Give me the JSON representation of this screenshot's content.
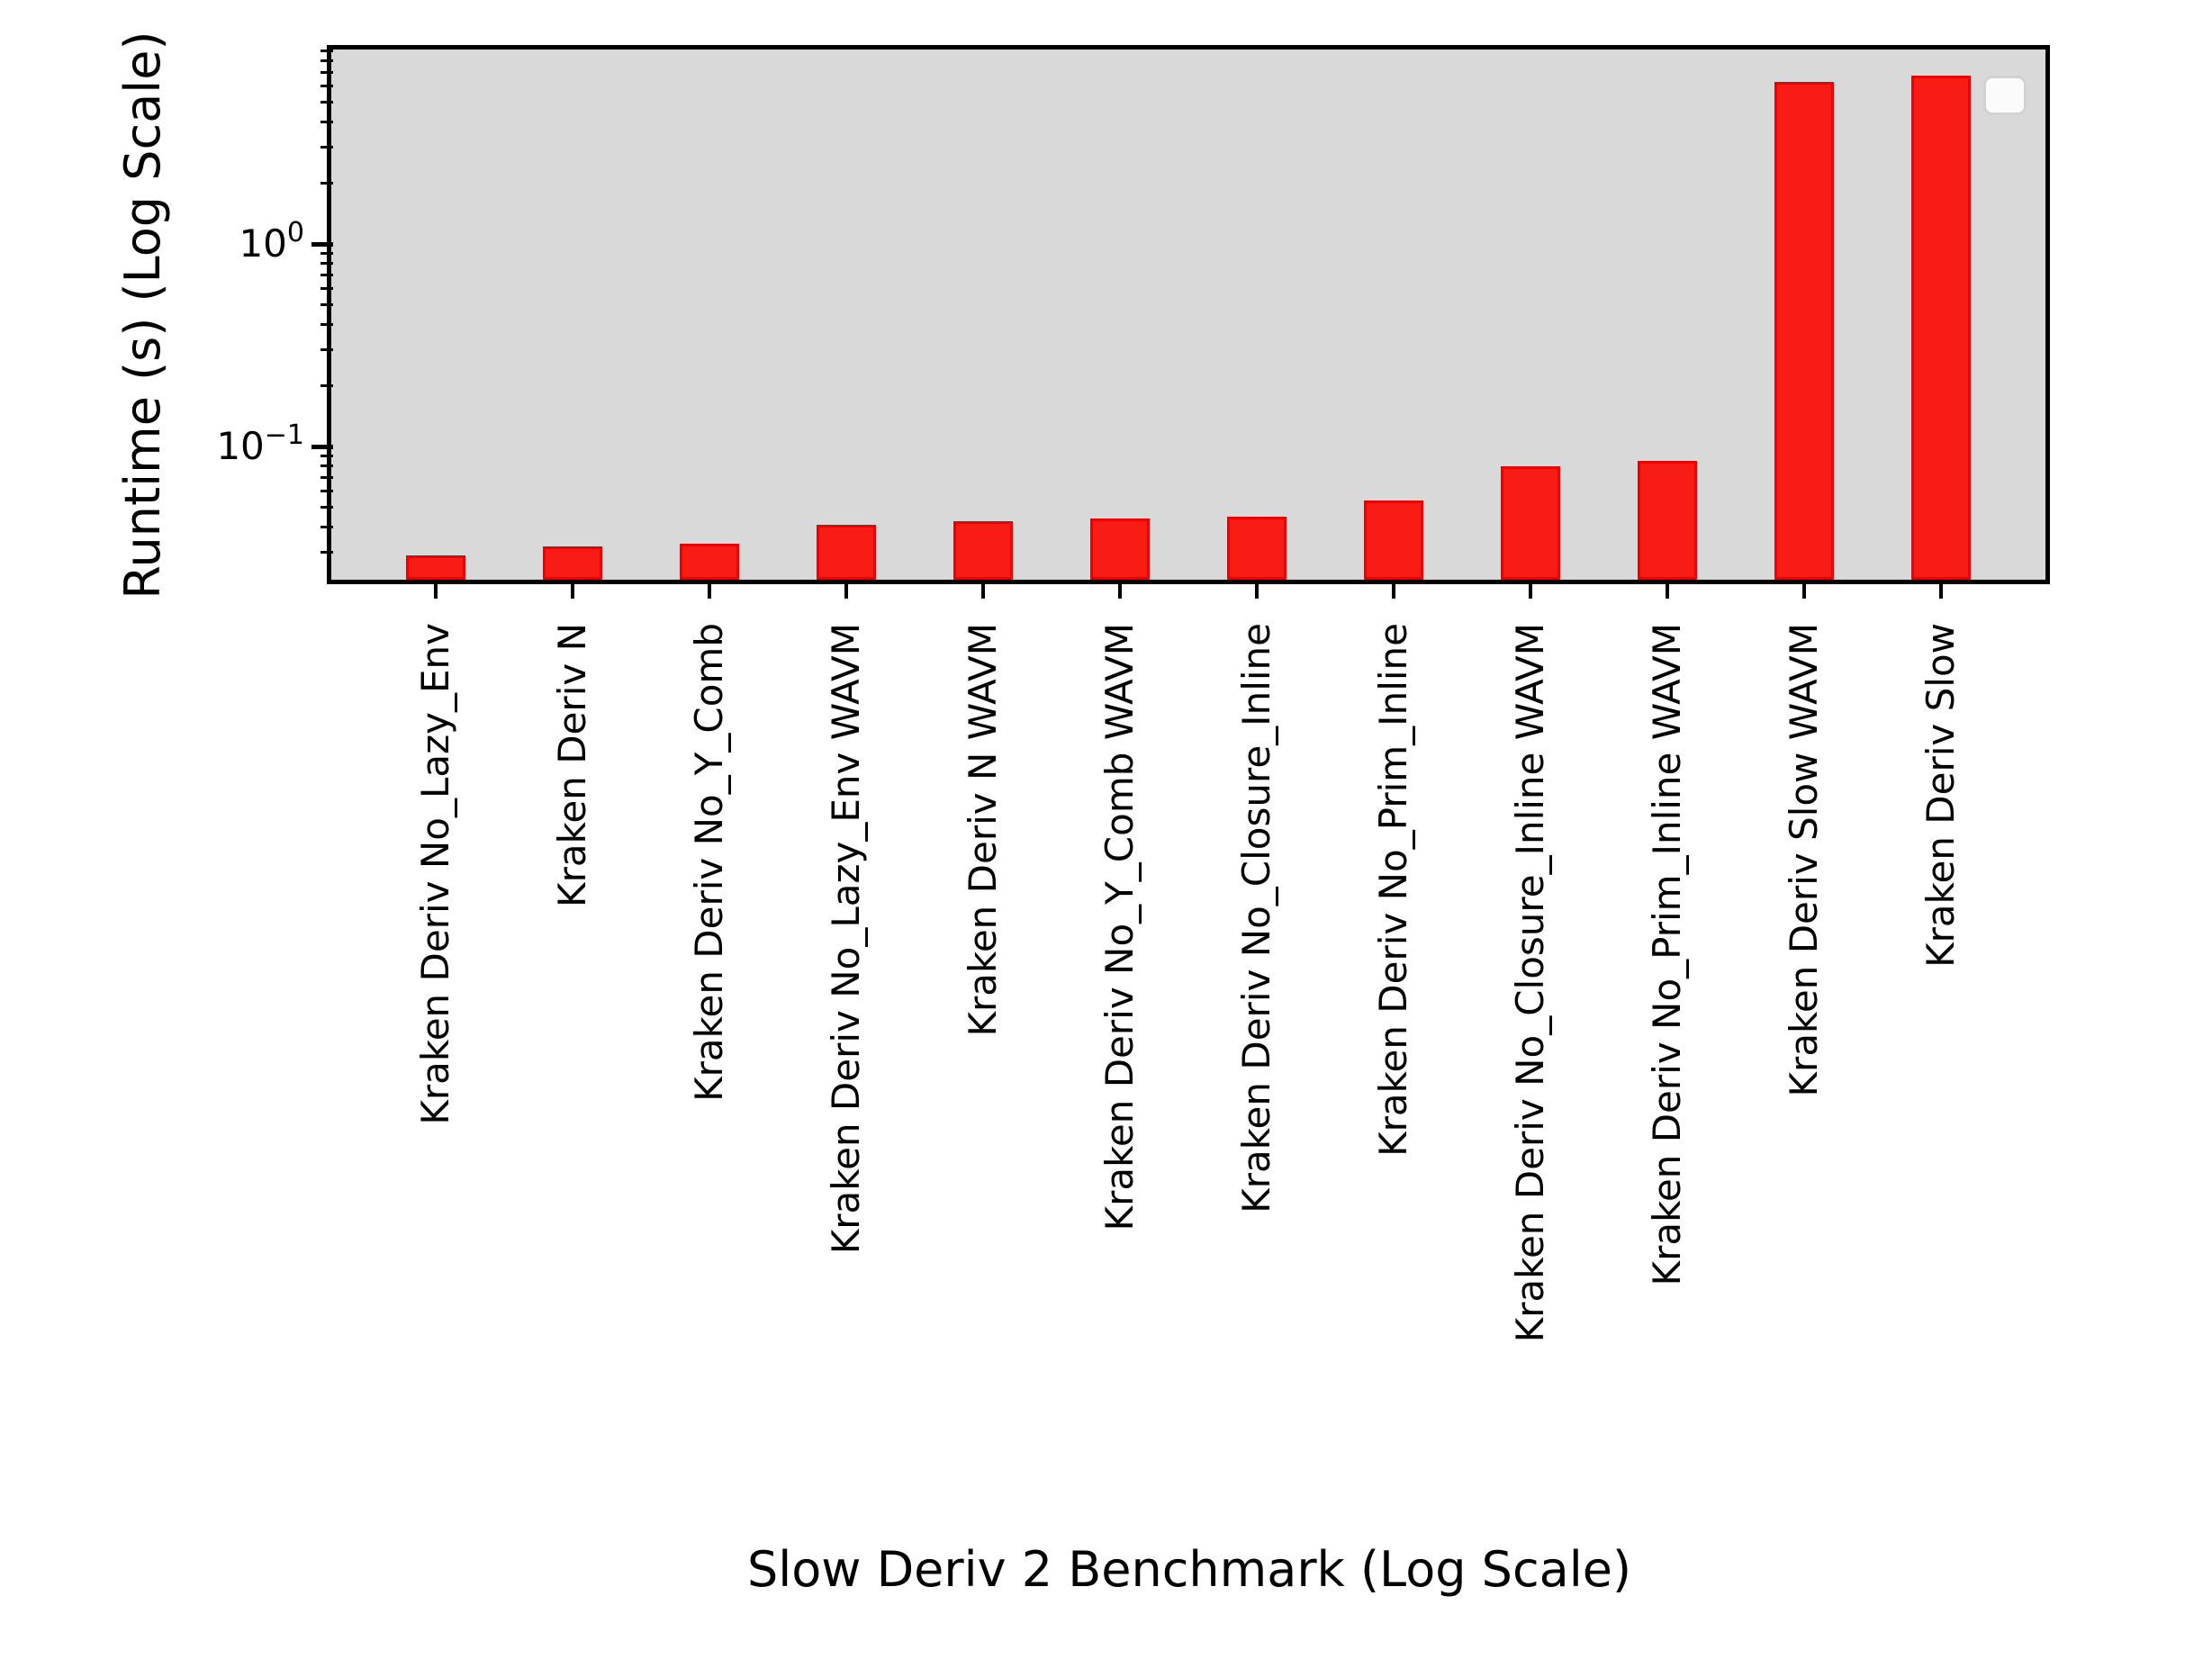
{
  "chart_data": {
    "type": "bar",
    "title": "",
    "xlabel": "Slow Deriv 2 Benchmark (Log Scale)",
    "ylabel": "Runtime (s) (Log Scale)",
    "yscale": "log",
    "ylim": [
      0.022,
      9.12
    ],
    "grid": false,
    "categories": [
      "Kraken Deriv No_Lazy_Env",
      "Kraken Deriv N",
      "Kraken Deriv No_Y_Comb",
      "Kraken Deriv No_Lazy_Env WAVM",
      "Kraken Deriv N WAVM",
      "Kraken Deriv No_Y_Comb WAVM",
      "Kraken Deriv No_Closure_Inline",
      "Kraken Deriv No_Prim_Inline",
      "Kraken Deriv No_Closure_Inline WAVM",
      "Kraken Deriv No_Prim_Inline WAVM",
      "Kraken Deriv Slow WAVM",
      "Kraken Deriv Slow"
    ],
    "values": [
      0.029,
      0.032,
      0.033,
      0.041,
      0.043,
      0.044,
      0.045,
      0.054,
      0.08,
      0.085,
      6.3,
      6.8
    ],
    "series_name": "Runtime (s)",
    "y_major_ticks": [
      {
        "value": 1,
        "base": "10",
        "exp": "0"
      },
      {
        "value": 0.1,
        "base": "10",
        "exp": "−1"
      }
    ],
    "legend": {
      "visible": true,
      "position": "upper right",
      "entries": []
    }
  },
  "colors": {
    "figure_bg": "#ffffff",
    "plot_bg": "#d9d9d9",
    "bar_fill": "#f91c14",
    "bar_edge": "#ee0000",
    "spine": "#000000",
    "text": "#000000",
    "legend_bg": "#fbfbfb",
    "legend_border": "#d2d2d2"
  }
}
